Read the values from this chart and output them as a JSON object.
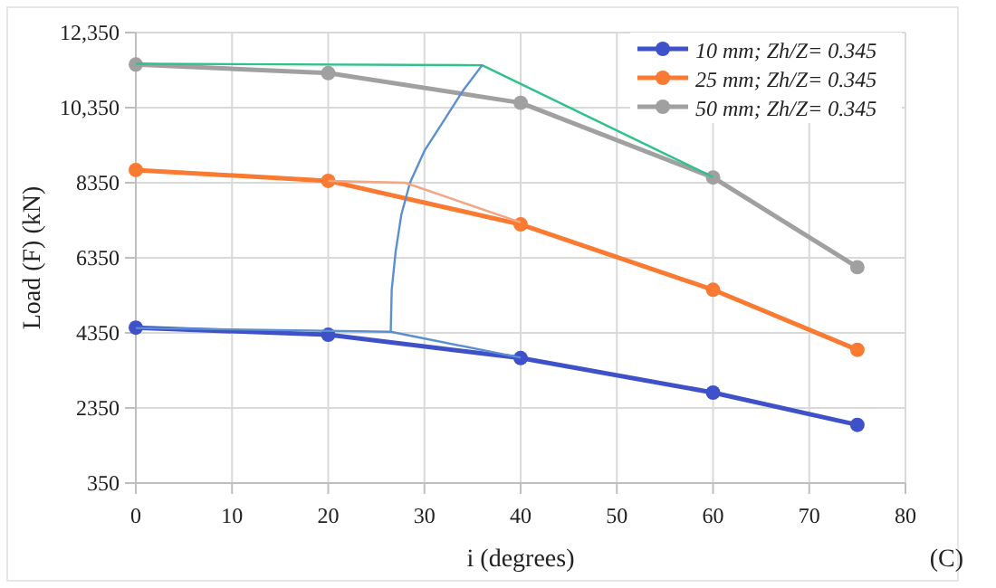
{
  "chart_data": {
    "type": "line",
    "xlabel": "i (degrees)",
    "ylabel": "Load (F) (kN)",
    "x": [
      0,
      20,
      40,
      60,
      75
    ],
    "series": [
      {
        "name": "10 mm; Zh/Z= 0.345",
        "color": "#3f51c9",
        "values": [
          4490,
          4300,
          3680,
          2760,
          1900
        ]
      },
      {
        "name": "25 mm; Zh/Z= 0.345",
        "color": "#f97a30",
        "values": [
          8690,
          8400,
          7240,
          5500,
          3900
        ]
      },
      {
        "name": "50 mm; Zh/Z= 0.345",
        "color": "#a0a0a0",
        "values": [
          11500,
          11270,
          10480,
          8490,
          6100
        ]
      },
      {
        "color": "#2ec28a",
        "marker": "none",
        "x": [
          0,
          36,
          60
        ],
        "values": [
          11520,
          11480,
          8500
        ]
      },
      {
        "color": "#5b8fd0",
        "marker": "none",
        "x": [
          26.5,
          26.6,
          27,
          27.6,
          28.5,
          30,
          32,
          34,
          36
        ],
        "values": [
          4400,
          5500,
          6500,
          7500,
          8350,
          9200,
          10000,
          10800,
          11480
        ]
      },
      {
        "color": "#f4a582",
        "marker": "none",
        "x": [
          20,
          28,
          40
        ],
        "values": [
          8400,
          8350,
          7290
        ]
      },
      {
        "color": "#5b8fd0",
        "marker": "none",
        "x": [
          0,
          26.5,
          40
        ],
        "values": [
          4480,
          4380,
          3690
        ]
      }
    ],
    "xlim": [
      0,
      80
    ],
    "xticks": [
      0,
      10,
      20,
      30,
      40,
      50,
      60,
      70,
      80
    ],
    "ylim": [
      350,
      12350
    ],
    "yticks": [
      350,
      {
        "value": 2350,
        "label": "2350"
      },
      {
        "value": 4350,
        "label": "4350"
      },
      {
        "value": 6350,
        "label": "6350"
      },
      {
        "value": 8350,
        "label": "8350"
      },
      {
        "value": 10350,
        "label": "10,350"
      },
      {
        "value": 12350,
        "label": "12,350"
      }
    ],
    "grid": true,
    "legend": "top right",
    "marker": "circle",
    "line_style": "solid",
    "annotations": [
      "(C)"
    ]
  }
}
